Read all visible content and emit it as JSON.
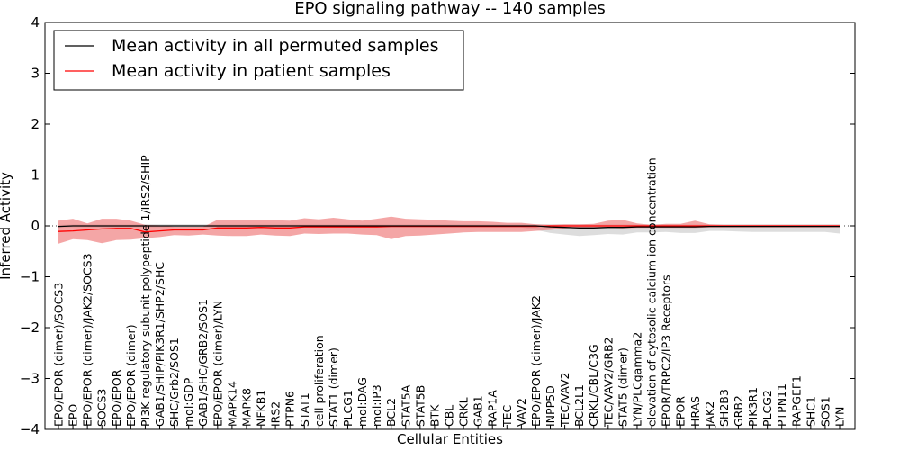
{
  "chart_data": {
    "type": "line",
    "title": "EPO signaling pathway -- 140 samples",
    "xlabel": "Cellular Entities",
    "ylabel": "Inferred Activity",
    "ylim": [
      -4,
      4
    ],
    "yticks": [
      -4,
      -3,
      -2,
      -1,
      0,
      1,
      2,
      3,
      4
    ],
    "categories": [
      "EPO/EPOR (dimer)/SOCS3",
      "EPO",
      "EPO/EPOR (dimer)/JAK2/SOCS3",
      "SOCS3",
      "EPO/EPOR",
      "EPO/EPOR (dimer)",
      "PI3K regulatory subunit polypeptide 1/IRS2/SHIP",
      "GAB1/SHIP/PIK3R1/SHP2/SHC",
      "SHC/Grb2/SOS1",
      "mol:GDP",
      "GAB1/SHC/GRB2/SOS1",
      "EPO/EPOR (dimer)/LYN",
      "MAPK14",
      "MAPK8",
      "NFKB1",
      "IRS2",
      "PTPN6",
      "STAT1",
      "cell proliferation",
      "STAT1 (dimer)",
      "PLCG1",
      "mol:DAG",
      "mol:IP3",
      "BCL2",
      "STAT5A",
      "STAT5B",
      "BTK",
      "CBL",
      "CRKL",
      "GAB1",
      "RAP1A",
      "TEC",
      "VAV2",
      "EPO/EPOR (dimer)/JAK2",
      "INPP5D",
      "TEC/VAV2",
      "BCL2L1",
      "CRKL/CBL/C3G",
      "TEC/VAV2/GRB2",
      "STAT5 (dimer)",
      "LYN/PLCgamma2",
      "elevation of cytosolic calcium ion concentration",
      "EPOR/TRPC2/IP3 Receptors",
      "EPOR",
      "HRAS",
      "JAK2",
      "SH2B3",
      "GRB2",
      "PIK3R1",
      "PLCG2",
      "PTPN11",
      "RAPGEF1",
      "SHC1",
      "SOS1",
      "LYN"
    ],
    "series": [
      {
        "name": "Mean activity in all permuted samples",
        "color": "#000000",
        "values": [
          -0.01,
          0,
          0,
          0,
          0,
          0,
          0,
          0,
          0,
          0,
          0,
          0,
          0,
          0,
          0,
          0,
          0,
          0,
          0,
          0,
          0,
          0,
          0,
          0,
          0,
          0,
          0,
          0,
          0,
          0,
          0,
          0,
          0,
          0,
          -0.02,
          -0.03,
          -0.04,
          -0.04,
          -0.03,
          -0.03,
          -0.02,
          -0.02,
          -0.02,
          -0.02,
          -0.02,
          -0.01,
          -0.01,
          -0.01,
          -0.01,
          -0.01,
          -0.01,
          -0.01,
          -0.01,
          -0.01,
          -0.01
        ],
        "band_low": [
          -0.04,
          -0.03,
          -0.03,
          -0.03,
          -0.03,
          -0.03,
          -0.03,
          -0.03,
          -0.03,
          -0.03,
          -0.03,
          -0.03,
          -0.03,
          -0.03,
          -0.03,
          -0.03,
          -0.03,
          -0.03,
          -0.03,
          -0.03,
          -0.03,
          -0.03,
          -0.03,
          -0.03,
          -0.03,
          -0.03,
          -0.03,
          -0.03,
          -0.03,
          -0.03,
          -0.03,
          -0.03,
          -0.03,
          -0.08,
          -0.14,
          -0.17,
          -0.2,
          -0.18,
          -0.16,
          -0.17,
          -0.13,
          -0.13,
          -0.12,
          -0.14,
          -0.14,
          -0.1,
          -0.1,
          -0.11,
          -0.12,
          -0.12,
          -0.12,
          -0.12,
          -0.12,
          -0.12,
          -0.15
        ],
        "band_high": [
          0.02,
          0.03,
          0.03,
          0.03,
          0.03,
          0.03,
          0.03,
          0.03,
          0.03,
          0.03,
          0.03,
          0.03,
          0.03,
          0.03,
          0.03,
          0.03,
          0.03,
          0.03,
          0.03,
          0.03,
          0.03,
          0.03,
          0.03,
          0.03,
          0.03,
          0.03,
          0.03,
          0.03,
          0.03,
          0.03,
          0.03,
          0.03,
          0.03,
          0.03,
          0.03,
          0.03,
          0.03,
          0.03,
          0.03,
          0.03,
          0.03,
          0.03,
          0.03,
          0.03,
          0.03,
          0.03,
          0.03,
          0.03,
          0.03,
          0.03,
          0.03,
          0.03,
          0.03,
          0.03,
          0.03
        ],
        "band_color": "#d9d9d9"
      },
      {
        "name": "Mean activity in patient samples",
        "color": "#ff0000",
        "values": [
          -0.11,
          -0.1,
          -0.08,
          -0.06,
          -0.05,
          -0.05,
          -0.12,
          -0.1,
          -0.08,
          -0.08,
          -0.08,
          -0.04,
          -0.04,
          -0.04,
          -0.03,
          -0.04,
          -0.04,
          -0.02,
          -0.02,
          -0.02,
          -0.02,
          -0.02,
          -0.02,
          -0.01,
          -0.01,
          -0.01,
          -0.01,
          -0.01,
          -0.01,
          -0.01,
          -0.01,
          -0.01,
          -0.01,
          -0.01,
          0,
          0,
          0,
          0,
          0,
          0,
          0,
          0,
          0,
          0,
          0,
          0,
          0,
          0,
          0,
          0,
          0,
          0,
          0,
          0,
          0
        ],
        "band_low": [
          -0.35,
          -0.26,
          -0.28,
          -0.34,
          -0.28,
          -0.27,
          -0.24,
          -0.22,
          -0.18,
          -0.19,
          -0.17,
          -0.19,
          -0.2,
          -0.2,
          -0.17,
          -0.19,
          -0.2,
          -0.15,
          -0.16,
          -0.15,
          -0.15,
          -0.17,
          -0.18,
          -0.26,
          -0.2,
          -0.19,
          -0.17,
          -0.15,
          -0.13,
          -0.12,
          -0.12,
          -0.12,
          -0.12,
          -0.1,
          -0.08,
          -0.05,
          -0.04,
          -0.03,
          -0.04,
          -0.05,
          -0.04,
          -0.04,
          -0.04,
          -0.04,
          -0.04,
          -0.03,
          -0.03,
          -0.03,
          -0.03,
          -0.03,
          -0.03,
          -0.03,
          -0.03,
          -0.03,
          -0.03
        ],
        "band_high": [
          0.1,
          0.14,
          0.05,
          0.14,
          0.14,
          0.1,
          0.02,
          0.01,
          -0.02,
          -0.02,
          -0.02,
          0.12,
          0.12,
          0.11,
          0.12,
          0.11,
          0.1,
          0.15,
          0.13,
          0.16,
          0.13,
          0.1,
          0.14,
          0.18,
          0.14,
          0.13,
          0.12,
          0.1,
          0.09,
          0.09,
          0.08,
          0.06,
          0.06,
          0.03,
          0.02,
          0.03,
          0.03,
          0.04,
          0.1,
          0.12,
          0.05,
          0.02,
          0.04,
          0.04,
          0.1,
          0.03,
          0.02,
          0.02,
          0.02,
          0.02,
          0.02,
          0.02,
          0.02,
          0.02,
          0.02
        ],
        "band_color": "#f08080"
      }
    ],
    "legend_position": "top-left",
    "grid": false
  }
}
